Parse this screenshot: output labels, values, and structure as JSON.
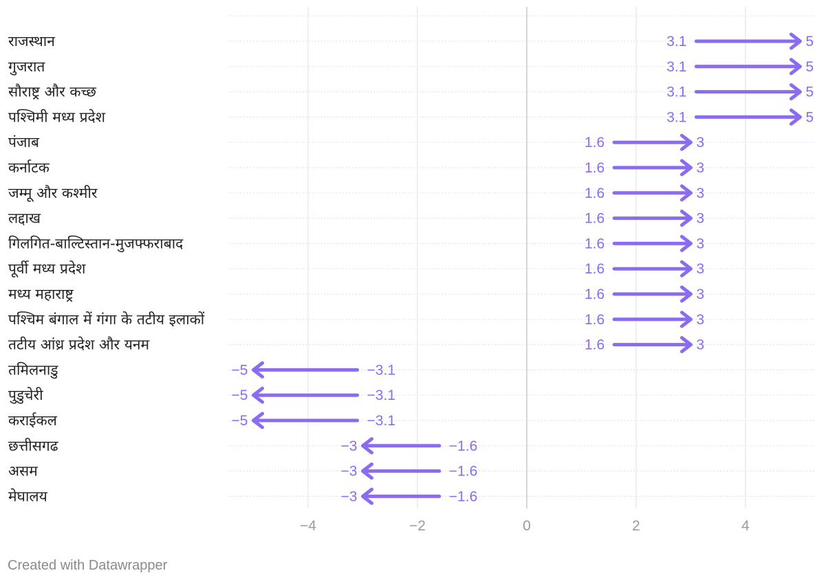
{
  "chart_data": {
    "type": "arrow",
    "title": "",
    "xlabel": "",
    "ylabel": "",
    "xlim": [
      -5.5,
      5.2
    ],
    "x_ticks": [
      -4,
      -2,
      0,
      2,
      4
    ],
    "grid": true,
    "legend": "none",
    "colors": {
      "arrow": "#8b6cf0",
      "grid_dotted": "#dddddd",
      "grid_vertical": "#e4e4e4",
      "zero_line": "#cccccc",
      "text": "#222222",
      "tick": "#9b9b9b"
    },
    "rows": [
      {
        "label": "राजस्थान",
        "start": 3.1,
        "end": 5
      },
      {
        "label": "गुजरात",
        "start": 3.1,
        "end": 5
      },
      {
        "label": "सौराष्ट्र और कच्छ",
        "start": 3.1,
        "end": 5
      },
      {
        "label": "पश्चिमी मध्य प्रदेश",
        "start": 3.1,
        "end": 5
      },
      {
        "label": "पंजाब",
        "start": 1.6,
        "end": 3
      },
      {
        "label": "कर्नाटक",
        "start": 1.6,
        "end": 3
      },
      {
        "label": "जम्मू और कश्मीर",
        "start": 1.6,
        "end": 3
      },
      {
        "label": "लद्दाख",
        "start": 1.6,
        "end": 3
      },
      {
        "label": "गिलगित-बाल्टिस्तान-मुजफ्फराबाद",
        "start": 1.6,
        "end": 3
      },
      {
        "label": "पूर्वी मध्य प्रदेश",
        "start": 1.6,
        "end": 3
      },
      {
        "label": "मध्य महाराष्ट्र",
        "start": 1.6,
        "end": 3
      },
      {
        "label": "पश्चिम बंगाल में गंगा के तटीय इलाकों",
        "start": 1.6,
        "end": 3
      },
      {
        "label": "तटीय आंध्र प्रदेश और यनम",
        "start": 1.6,
        "end": 3
      },
      {
        "label": "तमिलनाडु",
        "start": -3.1,
        "end": -5
      },
      {
        "label": "पुडुचेरी",
        "start": -3.1,
        "end": -5
      },
      {
        "label": "कराईकल",
        "start": -3.1,
        "end": -5
      },
      {
        "label": "छत्तीसगढ",
        "start": -1.6,
        "end": -3
      },
      {
        "label": "असम",
        "start": -1.6,
        "end": -3
      },
      {
        "label": "मेघालय",
        "start": -1.6,
        "end": -3
      }
    ]
  },
  "footer": {
    "credit": "Created with Datawrapper"
  }
}
